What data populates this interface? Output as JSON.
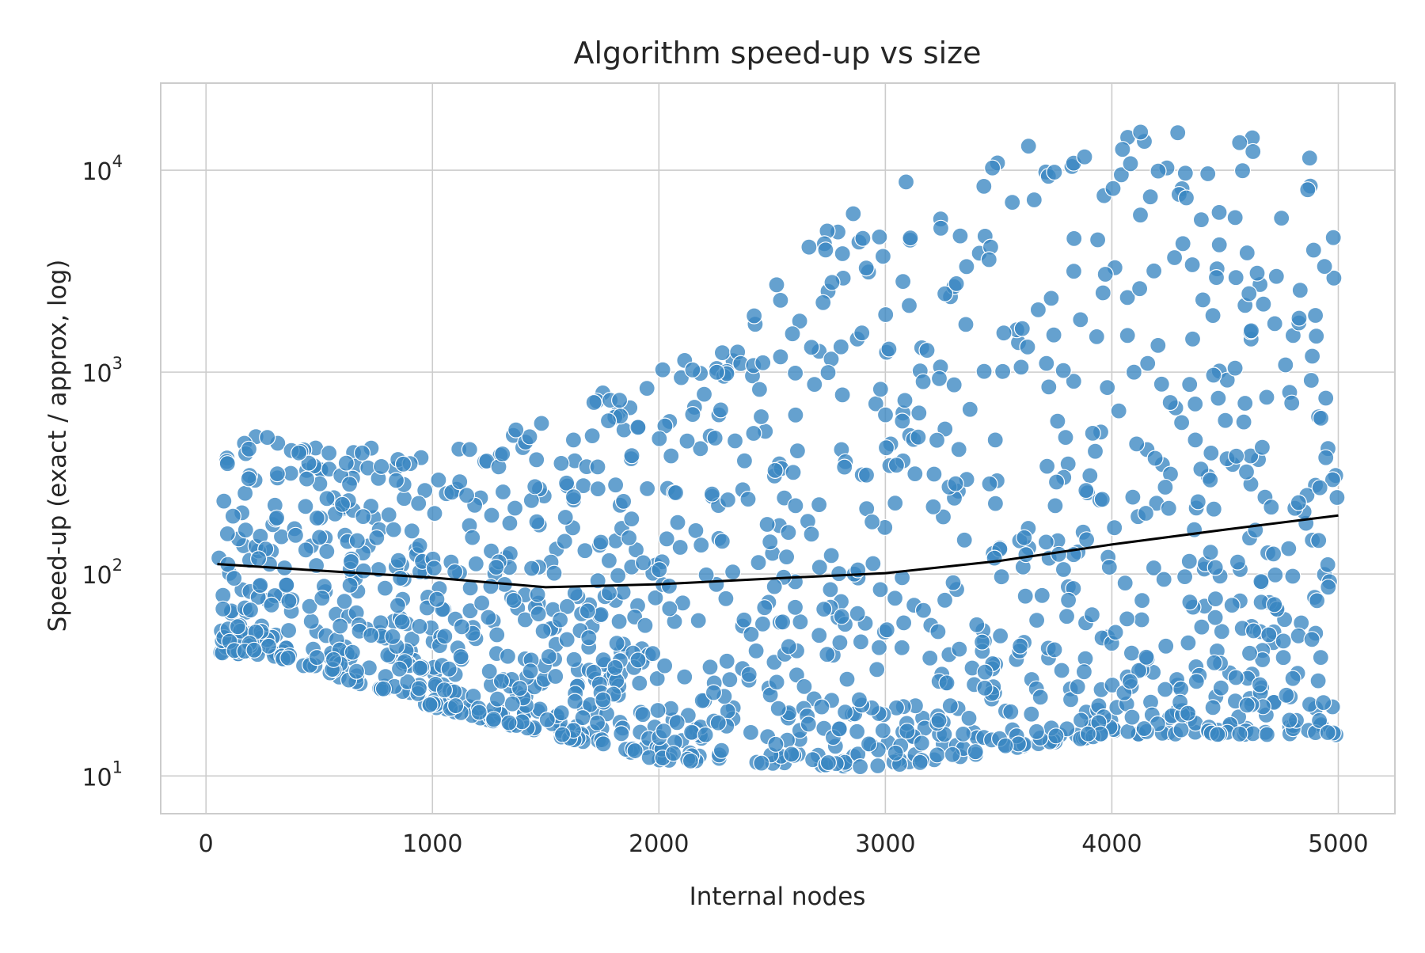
{
  "chart_data": {
    "type": "scatter",
    "title": "Algorithm speed-up vs size",
    "xlabel": "Internal nodes",
    "ylabel": "Speed-up  (exact / approx, log)",
    "xlim": [
      -200,
      5250
    ],
    "ylim": [
      6.5,
      27000
    ],
    "yscale": "log",
    "grid": true,
    "legend": "none",
    "xticks": [
      0,
      1000,
      2000,
      3000,
      4000,
      5000
    ],
    "yticks": [
      {
        "value": 10,
        "base": "10",
        "exp": "1"
      },
      {
        "value": 100,
        "base": "10",
        "exp": "2"
      },
      {
        "value": 1000,
        "base": "10",
        "exp": "3"
      },
      {
        "value": 10000,
        "base": "10",
        "exp": "4"
      }
    ],
    "point_color": "#3a87c2",
    "trend_color": "#000000",
    "n_points": 1500,
    "x_range": [
      50,
      5000
    ],
    "point_bands": [
      {
        "x_start": 50,
        "x_end": 500,
        "y_low": 40,
        "y_high": 480
      },
      {
        "x_start": 500,
        "x_end": 1500,
        "y_low": 22,
        "y_high": 400
      },
      {
        "x_start": 1500,
        "x_end": 2500,
        "y_low": 12,
        "y_high": 1000
      },
      {
        "x_start": 2500,
        "x_end": 3500,
        "y_low": 11,
        "y_high": 9000
      },
      {
        "x_start": 3500,
        "x_end": 4500,
        "y_low": 16,
        "y_high": 18000
      },
      {
        "x_start": 4500,
        "x_end": 5000,
        "y_low": 16,
        "y_high": 14000
      }
    ],
    "trend_line": {
      "x": [
        50,
        500,
        1000,
        1500,
        2000,
        2500,
        3000,
        3500,
        4000,
        4500,
        5000
      ],
      "y": [
        112,
        104,
        96,
        86,
        89,
        95,
        101,
        116,
        140,
        166,
        195
      ]
    }
  }
}
